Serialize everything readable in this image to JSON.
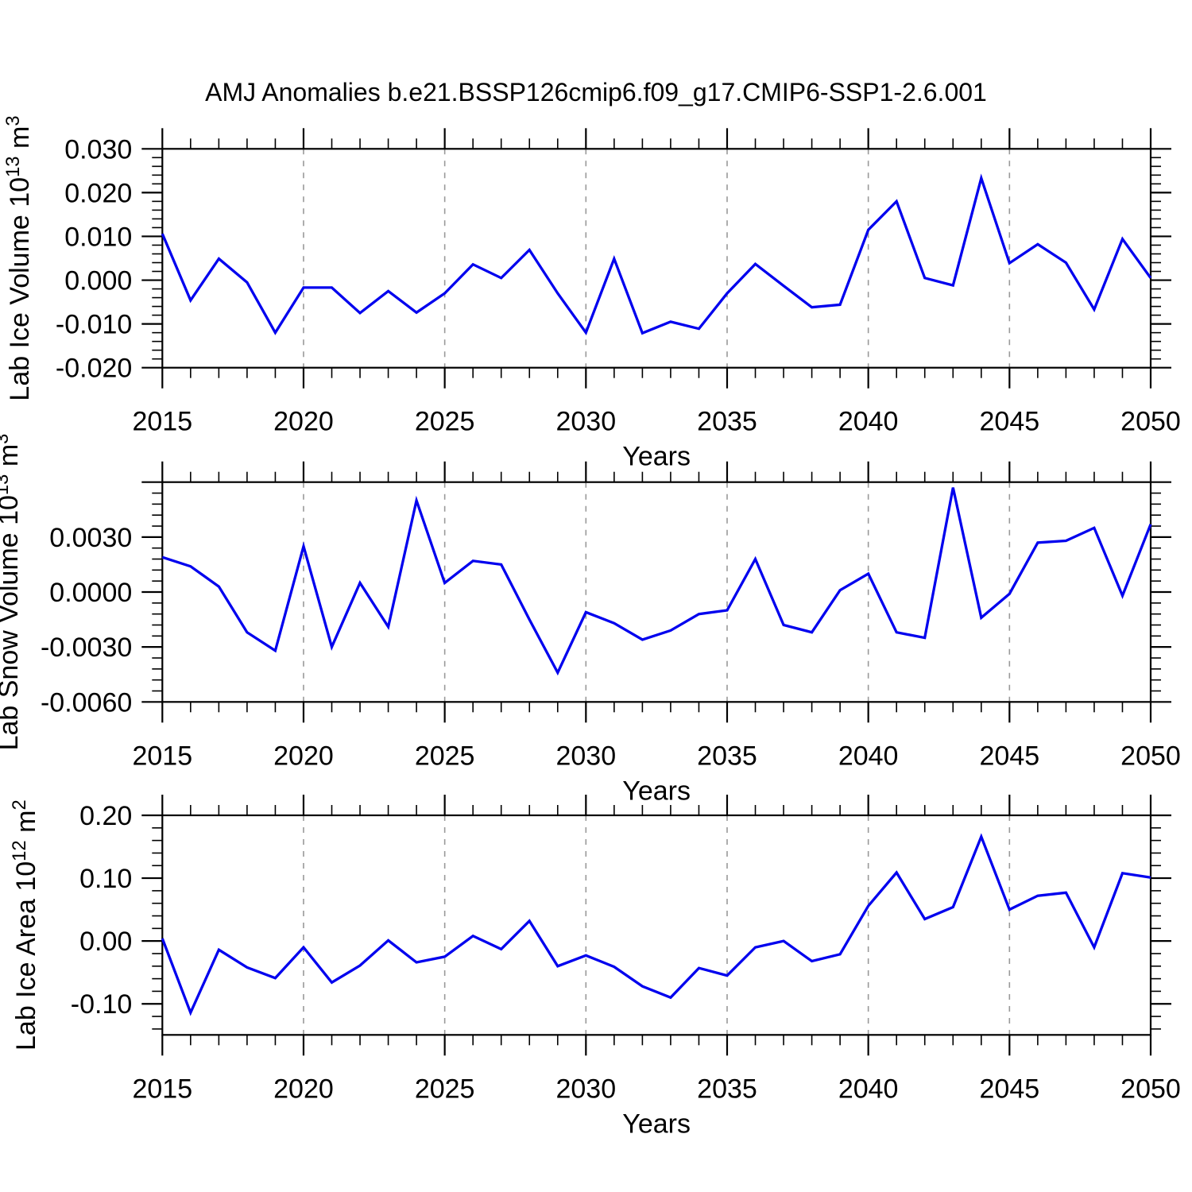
{
  "title": "AMJ Anomalies b.e21.BSSP126cmip6.f09_g17.CMIP6-SSP1-2.6.001",
  "line_color": "#0000EE",
  "grid_color": "#999999",
  "x_axis": {
    "label": "Years",
    "range": [
      2015,
      2050
    ],
    "major_ticks": [
      2015,
      2020,
      2025,
      2030,
      2035,
      2040,
      2045,
      2050
    ],
    "tick_labels": [
      "2015",
      "2020",
      "2025",
      "2030",
      "2035",
      "2040",
      "2045",
      "2050"
    ],
    "minor_step": 1,
    "gridline_years": [
      2020,
      2025,
      2030,
      2035,
      2040,
      2045
    ]
  },
  "chart_data": [
    {
      "type": "line",
      "name": "lab-ice-volume",
      "xlabel": "Years",
      "ylabel": "Lab Ice Volume 10^13 m^3",
      "ylabel_segments": [
        {
          "t": "Lab Ice Volume 10"
        },
        {
          "t": "13",
          "sup": true
        },
        {
          "t": " m"
        },
        {
          "t": "3",
          "sup": true
        }
      ],
      "x": [
        2015,
        2016,
        2017,
        2018,
        2019,
        2020,
        2021,
        2022,
        2023,
        2024,
        2025,
        2026,
        2027,
        2028,
        2029,
        2030,
        2031,
        2032,
        2033,
        2034,
        2035,
        2036,
        2037,
        2038,
        2039,
        2040,
        2041,
        2042,
        2043,
        2044,
        2045,
        2046,
        2047,
        2048,
        2049,
        2050
      ],
      "values": [
        0.0106,
        -0.0046,
        0.0049,
        -0.0005,
        -0.012,
        -0.0017,
        -0.0017,
        -0.0075,
        -0.0025,
        -0.0074,
        -0.003,
        0.0036,
        0.0005,
        0.0069,
        -0.003,
        -0.012,
        0.0049,
        -0.0121,
        -0.0095,
        -0.0111,
        -0.003,
        0.0037,
        -0.0013,
        -0.0062,
        -0.0056,
        0.0115,
        0.018,
        0.0005,
        -0.0012,
        0.0233,
        0.0039,
        0.0082,
        0.004,
        -0.0067,
        0.0094,
        0.0005
      ],
      "ylim": [
        -0.02,
        0.03
      ],
      "y_major_ticks": [
        0.03,
        0.02,
        0.01,
        0.0,
        -0.01,
        -0.02
      ],
      "y_tick_labels": [
        "0.030",
        "0.020",
        "0.010",
        "0.000",
        "-0.010",
        "-0.020"
      ],
      "y_minor_step": 0.002,
      "grid": "vertical-dashed",
      "legend": "none"
    },
    {
      "type": "line",
      "name": "lab-snow-volume",
      "xlabel": "Years",
      "ylabel": "Lab Snow Volume 10^13 m^3",
      "ylabel_segments": [
        {
          "t": "Lab Snow Volume 10"
        },
        {
          "t": "13",
          "sup": true
        },
        {
          "t": " m"
        },
        {
          "t": "3",
          "sup": true
        }
      ],
      "x": [
        2015,
        2016,
        2017,
        2018,
        2019,
        2020,
        2021,
        2022,
        2023,
        2024,
        2025,
        2026,
        2027,
        2028,
        2029,
        2030,
        2031,
        2032,
        2033,
        2034,
        2035,
        2036,
        2037,
        2038,
        2039,
        2040,
        2041,
        2042,
        2043,
        2044,
        2045,
        2046,
        2047,
        2048,
        2049,
        2050
      ],
      "values": [
        0.0019,
        0.0014,
        0.0003,
        -0.0022,
        -0.0032,
        0.0025,
        -0.003,
        0.0005,
        -0.0019,
        0.005,
        0.0005,
        0.0017,
        0.0015,
        -0.0015,
        -0.0044,
        -0.0011,
        -0.0017,
        -0.0026,
        -0.0021,
        -0.0012,
        -0.001,
        0.0018,
        -0.0018,
        -0.0022,
        0.0001,
        0.001,
        -0.0022,
        -0.0025,
        0.0057,
        -0.0014,
        -0.0001,
        0.0027,
        0.0028,
        0.0035,
        -0.0002,
        0.0037
      ],
      "ylim": [
        -0.006,
        0.006
      ],
      "y_major_ticks": [
        0.006,
        0.003,
        0.0,
        -0.003,
        -0.006
      ],
      "y_tick_labels": [
        "",
        "0.0030",
        "0.0000",
        "-0.0030",
        "-0.0060"
      ],
      "y_minor_step": 0.0006,
      "grid": "vertical-dashed",
      "legend": "none"
    },
    {
      "type": "line",
      "name": "lab-ice-area",
      "xlabel": "Years",
      "ylabel": "Lab Ice Area 10^12 m^2",
      "ylabel_segments": [
        {
          "t": "Lab Ice Area 10"
        },
        {
          "t": "12",
          "sup": true
        },
        {
          "t": " m"
        },
        {
          "t": "2",
          "sup": true
        }
      ],
      "x": [
        2015,
        2016,
        2017,
        2018,
        2019,
        2020,
        2021,
        2022,
        2023,
        2024,
        2025,
        2026,
        2027,
        2028,
        2029,
        2030,
        2031,
        2032,
        2033,
        2034,
        2035,
        2036,
        2037,
        2038,
        2039,
        2040,
        2041,
        2042,
        2043,
        2044,
        2045,
        2046,
        2047,
        2048,
        2049,
        2050
      ],
      "values": [
        0.004,
        -0.114,
        -0.014,
        -0.042,
        -0.059,
        -0.01,
        -0.066,
        -0.039,
        0.001,
        -0.034,
        -0.025,
        0.008,
        -0.013,
        0.032,
        -0.04,
        -0.023,
        -0.041,
        -0.072,
        -0.09,
        -0.043,
        -0.055,
        -0.01,
        0.0,
        -0.032,
        -0.021,
        0.056,
        0.109,
        0.035,
        0.054,
        0.166,
        0.05,
        0.072,
        0.077,
        -0.01,
        0.108,
        0.101
      ],
      "ylim": [
        -0.1494,
        0.2
      ],
      "y_major_ticks": [
        0.2,
        0.1,
        0.0,
        -0.1
      ],
      "y_tick_labels": [
        "0.20",
        "0.10",
        "0.00",
        "-0.10"
      ],
      "y_minor_step": 0.02,
      "grid": "vertical-dashed",
      "legend": "none"
    }
  ]
}
